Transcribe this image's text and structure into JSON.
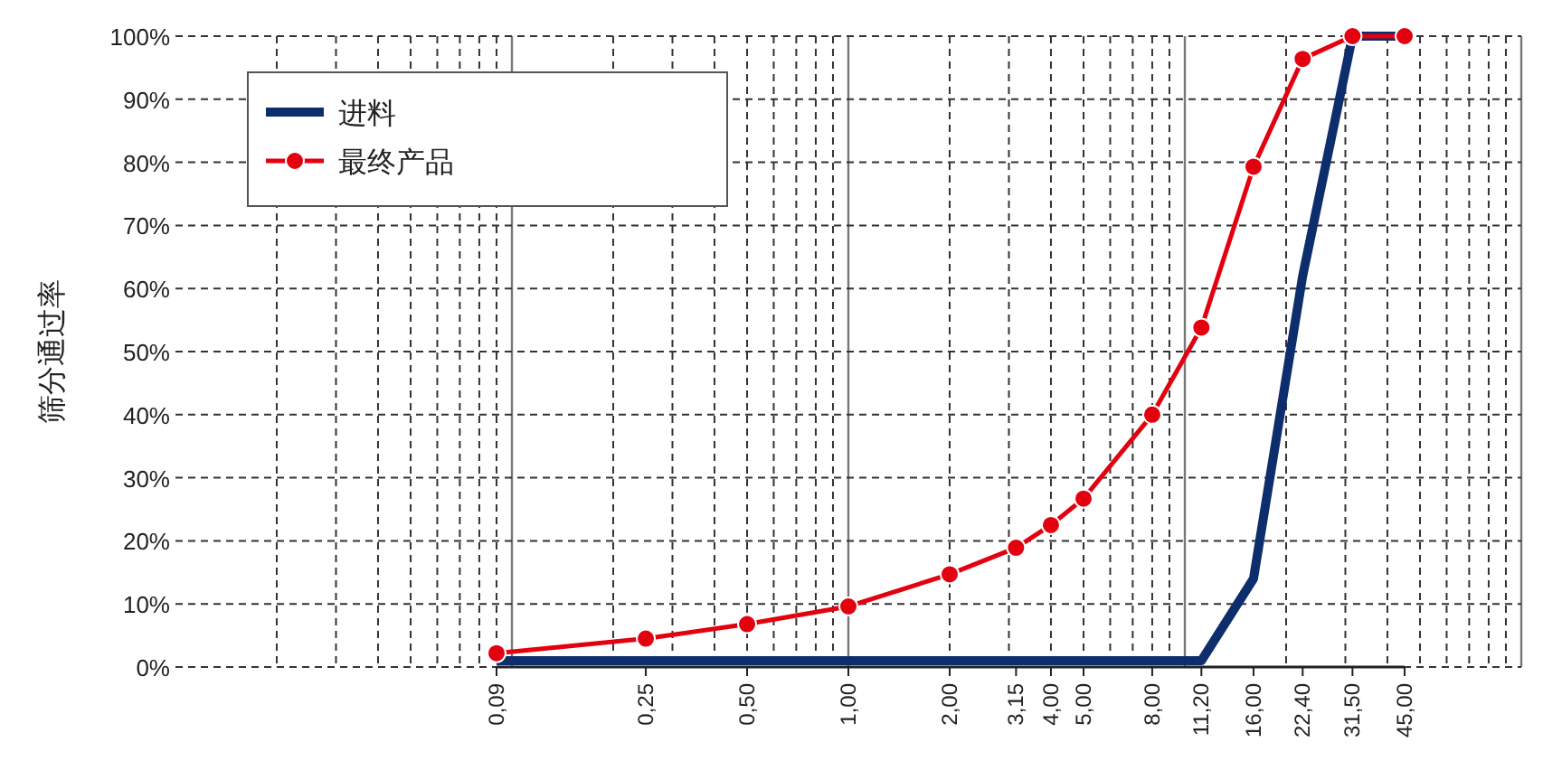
{
  "chart_data": {
    "type": "line",
    "ylabel": "筛分通过率",
    "log": "x",
    "grid": true,
    "legend": "top left",
    "x": [
      0.09,
      0.25,
      0.5,
      1,
      2,
      3.15,
      4,
      5,
      8,
      11.2,
      16,
      22.4,
      31.5,
      45
    ],
    "xlim": [
      0.01,
      100
    ],
    "xticks": [
      {
        "value": 0.09,
        "label": "0,09"
      },
      {
        "value": 0.25,
        "label": "0,25"
      },
      {
        "value": 0.5,
        "label": "0,50"
      },
      {
        "value": 1,
        "label": "1,00"
      },
      {
        "value": 2,
        "label": "2,00"
      },
      {
        "value": 3.15,
        "label": "3,15"
      },
      {
        "value": 4,
        "label": "4,00"
      },
      {
        "value": 5,
        "label": "5,00"
      },
      {
        "value": 8,
        "label": "8,00"
      },
      {
        "value": 11.2,
        "label": "11,20"
      },
      {
        "value": 16,
        "label": "16,00"
      },
      {
        "value": 22.4,
        "label": "22,40"
      },
      {
        "value": 31.5,
        "label": "31,50"
      },
      {
        "value": 45,
        "label": "45,00"
      }
    ],
    "ylim": [
      0,
      100
    ],
    "yticks": [
      {
        "value": 0,
        "label": "0%"
      },
      {
        "value": 10,
        "label": "10%"
      },
      {
        "value": 20,
        "label": "20%"
      },
      {
        "value": 30,
        "label": "30%"
      },
      {
        "value": 40,
        "label": "40%"
      },
      {
        "value": 50,
        "label": "50%"
      },
      {
        "value": 60,
        "label": "60%"
      },
      {
        "value": 70,
        "label": "70%"
      },
      {
        "value": 80,
        "label": "80%"
      },
      {
        "value": 90,
        "label": "90%"
      },
      {
        "value": 100,
        "label": "100%"
      }
    ],
    "series": [
      {
        "name": "进料",
        "color": "#0d2d6c",
        "marker": "none",
        "values": [
          1,
          1,
          1,
          1,
          1,
          1,
          1,
          1,
          1,
          1,
          14,
          62,
          100,
          100
        ]
      },
      {
        "name": "最终产品",
        "color": "#e3000f",
        "marker": "circle",
        "values": [
          2.2,
          4.5,
          6.8,
          9.6,
          14.7,
          18.9,
          22.5,
          26.7,
          40,
          53.8,
          79.3,
          96.4,
          100,
          100
        ]
      }
    ]
  }
}
